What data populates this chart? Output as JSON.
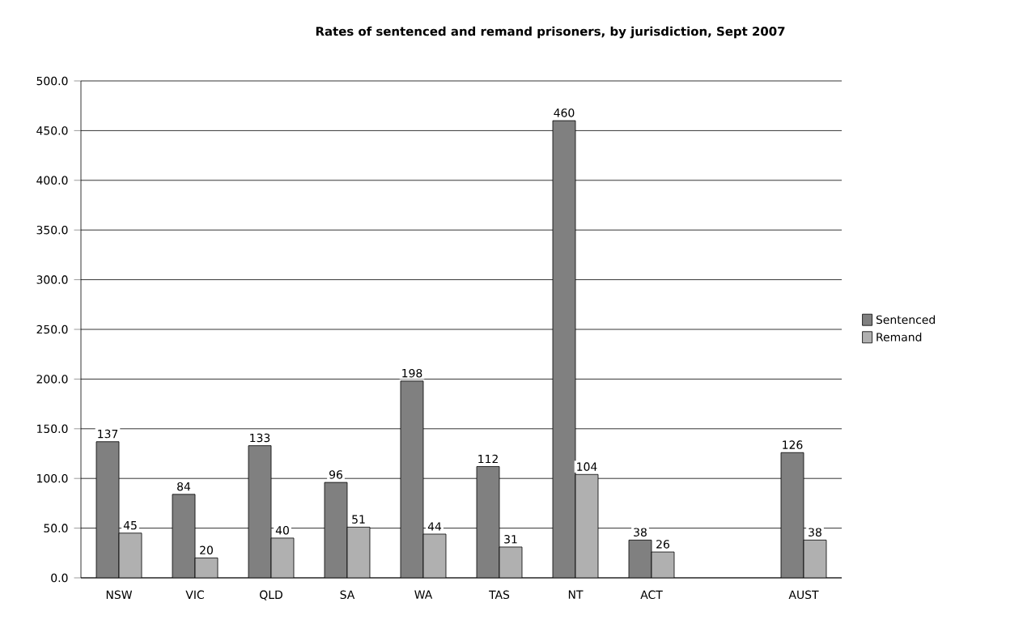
{
  "chart_data": {
    "type": "bar",
    "title": "Rates of sentenced and remand prisoners, by jurisdiction, Sept 2007",
    "categories": [
      "NSW",
      "VIC",
      "QLD",
      "SA",
      "WA",
      "TAS",
      "NT",
      "ACT",
      null,
      "AUST"
    ],
    "series": [
      {
        "name": "Sentenced",
        "color": "#808080",
        "values": [
          137,
          84,
          133,
          96,
          198,
          112,
          460,
          38,
          null,
          126
        ]
      },
      {
        "name": "Remand",
        "color": "#b0b0b0",
        "values": [
          45,
          20,
          40,
          51,
          44,
          31,
          104,
          26,
          null,
          38
        ]
      }
    ],
    "ylim": [
      0,
      500
    ],
    "yticks": [
      {
        "value": 0,
        "label": "0.0"
      },
      {
        "value": 50,
        "label": "50.0"
      },
      {
        "value": 100,
        "label": "100.0"
      },
      {
        "value": 150,
        "label": "150.0"
      },
      {
        "value": 200,
        "label": "200.0"
      },
      {
        "value": 250,
        "label": "250.0"
      },
      {
        "value": 300,
        "label": "300.0"
      },
      {
        "value": 350,
        "label": "350.0"
      },
      {
        "value": 400,
        "label": "400.0"
      },
      {
        "value": 450,
        "label": "450.0"
      },
      {
        "value": 500,
        "label": "500.0"
      }
    ],
    "grid": "y",
    "legend": "right",
    "data_labels": true
  }
}
